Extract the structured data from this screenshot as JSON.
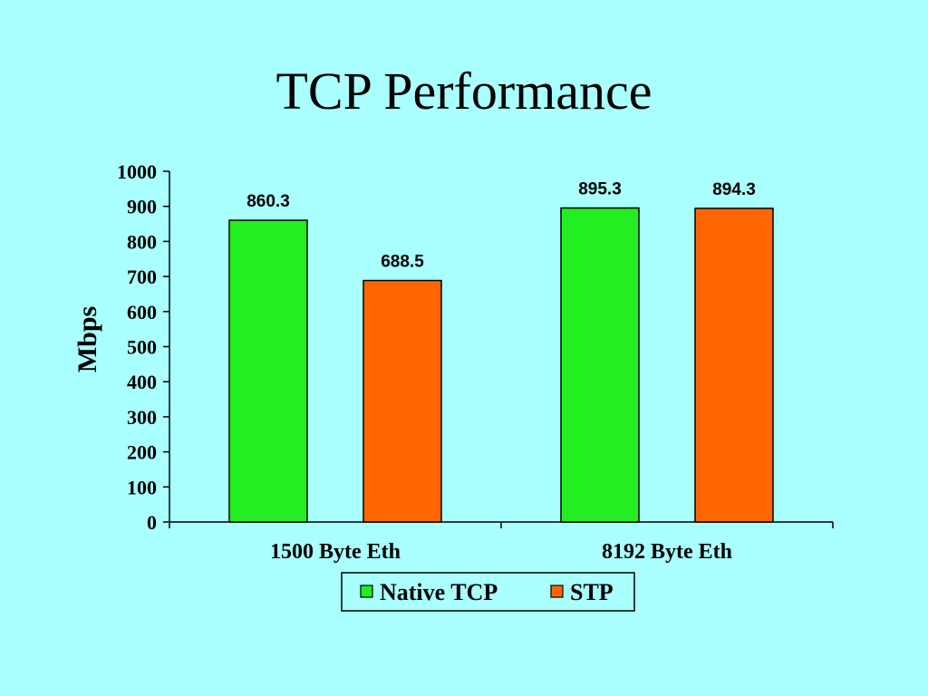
{
  "slide": {
    "title": "TCP Performance"
  },
  "chart_data": {
    "type": "bar",
    "title": "",
    "xlabel": "",
    "ylabel": "Mbps",
    "ylim": [
      0,
      1000
    ],
    "yticks": [
      0,
      100,
      200,
      300,
      400,
      500,
      600,
      700,
      800,
      900,
      1000
    ],
    "categories": [
      "1500 Byte Eth",
      "8192 Byte Eth"
    ],
    "series": [
      {
        "name": "Native TCP",
        "values": [
          860.3,
          895.3
        ],
        "labels": [
          "860.3",
          "895.3"
        ],
        "color": "#22ee22"
      },
      {
        "name": "STP",
        "values": [
          688.5,
          894.3
        ],
        "labels": [
          "688.5",
          "894.3"
        ],
        "color": "#ff6600"
      }
    ],
    "grid": false,
    "legend_position": "bottom",
    "background": "#aaffff"
  }
}
